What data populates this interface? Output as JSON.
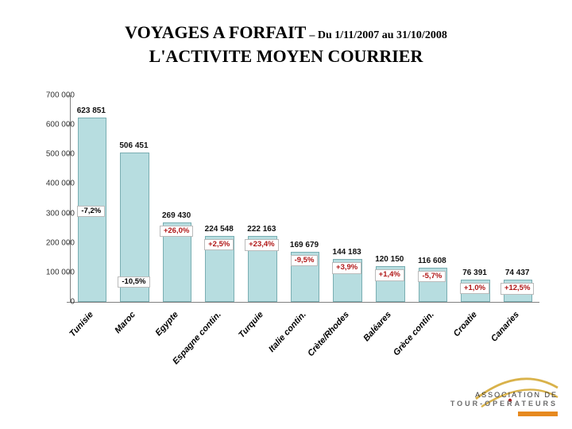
{
  "title": {
    "main": "VOYAGES A FORFAIT",
    "period": "– Du 1/11/2007 au 31/10/2008",
    "line2": "L'ACTIVITE MOYEN COURRIER"
  },
  "chart": {
    "type": "bar",
    "ylim": [
      0,
      700000
    ],
    "ytick_step": 100000,
    "yticks": [
      "0",
      "100 000",
      "200 000",
      "300 000",
      "400 000",
      "500 000",
      "600 000",
      "700 000"
    ],
    "bar_fill": "#b7dde0",
    "bar_border": "#7aaeb2",
    "axis_color": "#808080",
    "background_color": "#ffffff",
    "label_fontsize": 10,
    "value_fontsize": 10,
    "pct_fontsize": 9.5,
    "xlabel_rotation_deg": -48,
    "bar_width_ratio": 0.68,
    "series": [
      {
        "category": "Tunisie",
        "value": 623851,
        "value_label": "623 851",
        "pct": "-7,2%",
        "pct_color": "#000000"
      },
      {
        "category": "Maroc",
        "value": 506451,
        "value_label": "506 451",
        "pct": "-10,5%",
        "pct_color": "#000000"
      },
      {
        "category": "Egypte",
        "value": 269430,
        "value_label": "269 430",
        "pct": "+26,0%",
        "pct_color": "#b01818"
      },
      {
        "category": "Espagne contin.",
        "value": 224548,
        "value_label": "224 548",
        "pct": "+2,5%",
        "pct_color": "#b01818"
      },
      {
        "category": "Turquie",
        "value": 222163,
        "value_label": "222 163",
        "pct": "+23,4%",
        "pct_color": "#b01818"
      },
      {
        "category": "Italie contin.",
        "value": 169679,
        "value_label": "169 679",
        "pct": "-9,5%",
        "pct_color": "#b01818"
      },
      {
        "category": "Crète/Rhodes",
        "value": 144183,
        "value_label": "144 183",
        "pct": "+3,9%",
        "pct_color": "#b01818"
      },
      {
        "category": "Baléares",
        "value": 120150,
        "value_label": "120 150",
        "pct": "+1,4%",
        "pct_color": "#b01818"
      },
      {
        "category": "Grèce contin.",
        "value": 116608,
        "value_label": "116 608",
        "pct": "-5,7%",
        "pct_color": "#b01818"
      },
      {
        "category": "Croatie",
        "value": 76391,
        "value_label": "76 391",
        "pct": "+1,0%",
        "pct_color": "#b01818"
      },
      {
        "category": "Canaries",
        "value": 74437,
        "value_label": "74 437",
        "pct": "+12,5%",
        "pct_color": "#b01818"
      }
    ]
  },
  "logo": {
    "line1": "ASSOCIATION DE",
    "line2": "TOUR-OPERATEURS",
    "swoosh_color": "#d9b24a",
    "accent_bar_color": "#e6891f"
  }
}
